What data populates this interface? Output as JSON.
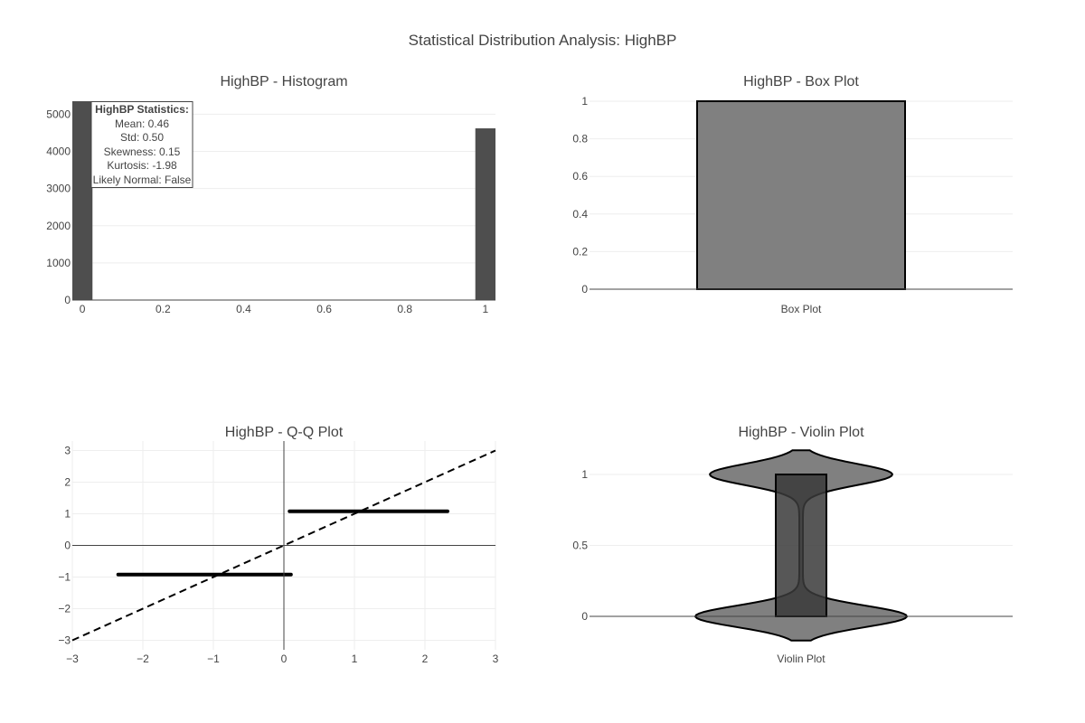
{
  "figure_title": "Statistical Distribution Analysis: HighBP",
  "colors": {
    "dark": "#444444",
    "mid": "#808080",
    "darkfill": "#3a3a3a",
    "grid": "#eeeeee",
    "axis": "#444444",
    "text": "#444444"
  },
  "chart_data": [
    {
      "type": "bar",
      "title": "HighBP - Histogram",
      "x_ticks": [
        "0",
        "0.2",
        "0.4",
        "0.6",
        "0.8",
        "1"
      ],
      "y_ticks": [
        "0",
        "1000",
        "2000",
        "3000",
        "4000",
        "5000"
      ],
      "xlim": [
        -0.025,
        1.025
      ],
      "ylim": [
        0,
        5350
      ],
      "bins": [
        {
          "x0": -0.025,
          "x1": 0.025,
          "count": 5350
        },
        {
          "x0": 0.975,
          "x1": 1.025,
          "count": 4620
        }
      ],
      "stats_box": {
        "title": "HighBP Statistics:",
        "lines": [
          "Mean: 0.46",
          "Std: 0.50",
          "Skewness: 0.15",
          "Kurtosis: -1.98",
          "Likely Normal: False"
        ]
      }
    },
    {
      "type": "box",
      "title": "HighBP - Box Plot",
      "category": "Box Plot",
      "y_ticks": [
        "0",
        "0.2",
        "0.4",
        "0.6",
        "0.8",
        "1"
      ],
      "ylim": [
        0,
        1.045
      ],
      "q1": 0,
      "median": 0,
      "q3": 1,
      "min": 0,
      "max": 1
    },
    {
      "type": "scatter",
      "title": "HighBP - Q-Q Plot",
      "x_ticks": [
        "−3",
        "−2",
        "−1",
        "0",
        "1",
        "2",
        "3"
      ],
      "y_ticks": [
        "−3",
        "−2",
        "−1",
        "0",
        "1",
        "2",
        "3"
      ],
      "xlim": [
        -3,
        3
      ],
      "ylim": [
        -3.3,
        3.3
      ],
      "series": [
        {
          "x0": -2.35,
          "x1": 0.1,
          "y": -0.92
        },
        {
          "x0": 0.08,
          "x1": 2.32,
          "y": 1.08
        }
      ],
      "reference_line": {
        "x0": -3,
        "y0": -3,
        "x1": 3,
        "y1": 3
      }
    },
    {
      "type": "violin",
      "title": "HighBP - Violin Plot",
      "category": "Violin Plot",
      "y_ticks": [
        "0",
        "0.5",
        "1"
      ],
      "ylim": [
        -0.1,
        1.15
      ],
      "range": [
        -0.17,
        1.17
      ],
      "q1": 0,
      "q3": 1
    }
  ]
}
